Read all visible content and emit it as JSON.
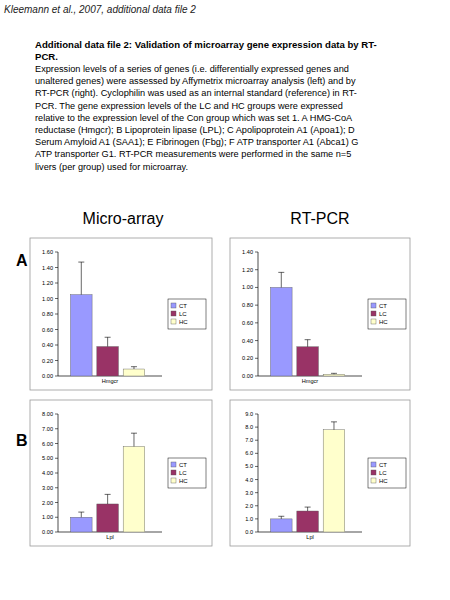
{
  "header": "Kleemann et al., 2007, additional data file 2",
  "caption": {
    "title": [
      "Additional data file 2: Validation of microarray gene expression data by RT-",
      "PCR."
    ],
    "text": [
      "Expression levels of a series of genes (i.e. differentially expressed genes and",
      "unaltered genes) were assessed by Affymetrix microarray analysis (left) and by",
      "RT-PCR (right). Cyclophilin was used as an internal standard (reference) in RT-",
      "PCR. The gene expression levels of the LC and HC groups were expressed",
      "relative to the expression level of the Con group which was set 1. A HMG-CoA",
      "reductase (Hmgcr); B Lipoprotein lipase (LPL); C Apolipoprotein A1 (Apoa1); D",
      "Serum Amyloid A1 (SAA1); E Fibrinogen (Fbg); F ATP transporter A1 (Abca1) G",
      "ATP transporter G1. RT-PCR measurements were performed in the same n=5",
      "livers (per group) used for microarray."
    ]
  },
  "columns": [
    "Micro-array",
    "RT-PCR"
  ],
  "panel_labels": [
    "A",
    "B"
  ],
  "chart_data": [
    {
      "type": "bar",
      "categories": [
        "Hmgcr"
      ],
      "series": [
        {
          "name": "CT",
          "color": "#9999ff",
          "values": [
            1.05
          ],
          "errors": [
            0.42
          ]
        },
        {
          "name": "LC",
          "color": "#993366",
          "values": [
            0.38
          ],
          "errors": [
            0.12
          ]
        },
        {
          "name": "HC",
          "color": "#ffffcc",
          "values": [
            0.09
          ],
          "errors": [
            0.03
          ]
        }
      ],
      "ylim": [
        0,
        1.6
      ],
      "yticks": [
        {
          "value": 0,
          "label": "0.00"
        },
        {
          "value": 0.2,
          "label": "0.20"
        },
        {
          "value": 0.4,
          "label": "0.40"
        },
        {
          "value": 0.6,
          "label": "0.60"
        },
        {
          "value": 0.8,
          "label": "0.80"
        },
        {
          "value": 1,
          "label": "1.00"
        },
        {
          "value": 1.2,
          "label": "1.20"
        },
        {
          "value": 1.4,
          "label": "1.40"
        },
        {
          "value": 1.6,
          "label": "1.60"
        }
      ],
      "grid": false,
      "legend": "right"
    },
    {
      "type": "bar",
      "categories": [
        "Hmgcr"
      ],
      "series": [
        {
          "name": "CT",
          "color": "#9999ff",
          "values": [
            1.0
          ],
          "errors": [
            0.17
          ]
        },
        {
          "name": "LC",
          "color": "#993366",
          "values": [
            0.33
          ],
          "errors": [
            0.08
          ]
        },
        {
          "name": "HC",
          "color": "#ffffcc",
          "values": [
            0.02
          ],
          "errors": [
            0.01
          ]
        }
      ],
      "ylim": [
        0,
        1.4
      ],
      "yticks": [
        {
          "value": 0,
          "label": "0.00"
        },
        {
          "value": 0.2,
          "label": "0.20"
        },
        {
          "value": 0.4,
          "label": "0.40"
        },
        {
          "value": 0.6,
          "label": "0.60"
        },
        {
          "value": 0.8,
          "label": "0.80"
        },
        {
          "value": 1,
          "label": "1.00"
        },
        {
          "value": 1.2,
          "label": "1.20"
        },
        {
          "value": 1.4,
          "label": "1.40"
        }
      ],
      "grid": false,
      "legend": "right"
    },
    {
      "type": "bar",
      "categories": [
        "Lpl"
      ],
      "series": [
        {
          "name": "CT",
          "color": "#9999ff",
          "values": [
            1.0
          ],
          "errors": [
            0.35
          ]
        },
        {
          "name": "LC",
          "color": "#993366",
          "values": [
            1.9
          ],
          "errors": [
            0.65
          ]
        },
        {
          "name": "HC",
          "color": "#ffffcc",
          "values": [
            5.8
          ],
          "errors": [
            0.9
          ]
        }
      ],
      "ylim": [
        0,
        8
      ],
      "yticks": [
        {
          "value": 0,
          "label": "0.00"
        },
        {
          "value": 1,
          "label": "1.00"
        },
        {
          "value": 2,
          "label": "2.00"
        },
        {
          "value": 3,
          "label": "3.00"
        },
        {
          "value": 4,
          "label": "4.00"
        },
        {
          "value": 5,
          "label": "5.00"
        },
        {
          "value": 6,
          "label": "6.00"
        },
        {
          "value": 7,
          "label": "7.00"
        },
        {
          "value": 8,
          "label": "8.00"
        }
      ],
      "grid": false,
      "legend": "right"
    },
    {
      "type": "bar",
      "categories": [
        "Lpl"
      ],
      "series": [
        {
          "name": "CT",
          "color": "#9999ff",
          "values": [
            1.0
          ],
          "errors": [
            0.2
          ]
        },
        {
          "name": "LC",
          "color": "#993366",
          "values": [
            1.6
          ],
          "errors": [
            0.3
          ]
        },
        {
          "name": "HC",
          "color": "#ffffcc",
          "values": [
            7.8
          ],
          "errors": [
            0.6
          ]
        }
      ],
      "ylim": [
        0,
        9
      ],
      "yticks": [
        {
          "value": 0,
          "label": "0.0"
        },
        {
          "value": 1,
          "label": "1.0"
        },
        {
          "value": 2,
          "label": "2.0"
        },
        {
          "value": 3,
          "label": "3.0"
        },
        {
          "value": 4,
          "label": "4.0"
        },
        {
          "value": 5,
          "label": "5.0"
        },
        {
          "value": 6,
          "label": "6.0"
        },
        {
          "value": 7,
          "label": "7.0"
        },
        {
          "value": 8,
          "label": "8.0"
        },
        {
          "value": 9,
          "label": "9.0"
        }
      ],
      "grid": false,
      "legend": "right"
    }
  ]
}
